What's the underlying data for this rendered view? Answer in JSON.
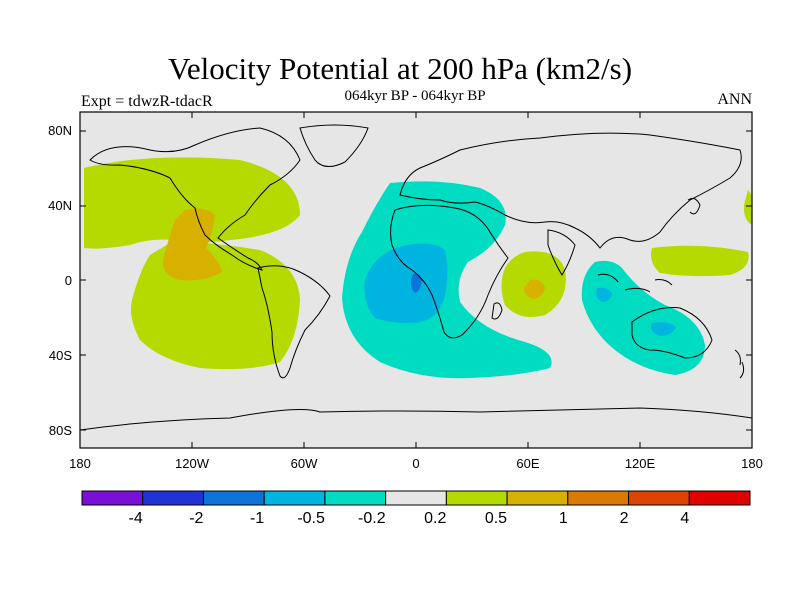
{
  "header": {
    "title": "Velocity Potential at 200 hPa (km2/s)",
    "subtitle": "064kyr BP - 064kyr BP",
    "left_label": "Expt = tdwzR-tdacR",
    "right_label": "ANN"
  },
  "map": {
    "lat_ticks": [
      "80N",
      "40N",
      "0",
      "40S",
      "80S"
    ],
    "lon_ticks": [
      "180",
      "120W",
      "60W",
      "0",
      "60E",
      "120E",
      "180"
    ],
    "lon_range": [
      -180,
      180
    ],
    "lat_range": [
      -90,
      90
    ],
    "projection": "cylindrical equidistant"
  },
  "colorbar": {
    "colors": [
      "#7a10d8",
      "#2233d6",
      "#0e73d9",
      "#00b4e0",
      "#00dcc2",
      "#e6e6e6",
      "#b4da00",
      "#d8b000",
      "#da7a00",
      "#dc4400",
      "#e00000"
    ],
    "labels": [
      "-4",
      "-2",
      "-1",
      "-0.5",
      "-0.2",
      "0.2",
      "0.5",
      "1",
      "2",
      "4"
    ]
  }
}
